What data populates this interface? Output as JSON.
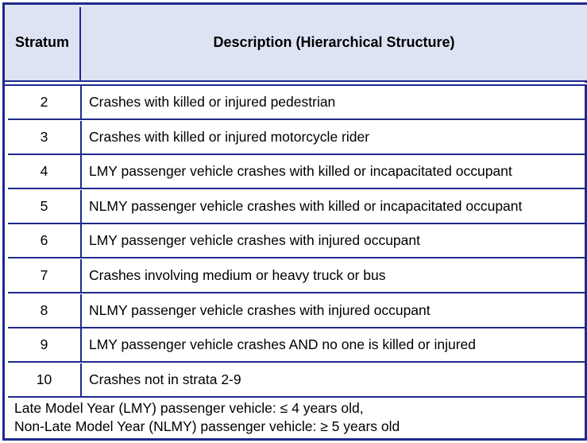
{
  "table": {
    "headers": {
      "stratum": "Stratum",
      "description": "Description (Hierarchical Structure)"
    },
    "rows": [
      {
        "stratum": "2",
        "description": "Crashes with killed or injured pedestrian"
      },
      {
        "stratum": "3",
        "description": "Crashes with killed or injured motorcycle rider"
      },
      {
        "stratum": "4",
        "description": "LMY passenger vehicle crashes with killed or incapacitated occupant"
      },
      {
        "stratum": "5",
        "description": "NLMY passenger vehicle crashes with killed or incapacitated occupant"
      },
      {
        "stratum": "6",
        "description": "LMY passenger vehicle crashes with injured occupant"
      },
      {
        "stratum": "7",
        "description": "Crashes involving medium or heavy truck or bus"
      },
      {
        "stratum": "8",
        "description": "NLMY passenger vehicle crashes with injured occupant"
      },
      {
        "stratum": "9",
        "description": "LMY passenger vehicle crashes AND no one is killed or injured"
      },
      {
        "stratum": "10",
        "description": "Crashes not in strata 2-9"
      }
    ],
    "notes": [
      "Late Model Year (LMY) passenger vehicle: ≤ 4 years old,",
      "Non-Late Model Year (NLMY) passenger vehicle: ≥ 5 years old"
    ]
  }
}
